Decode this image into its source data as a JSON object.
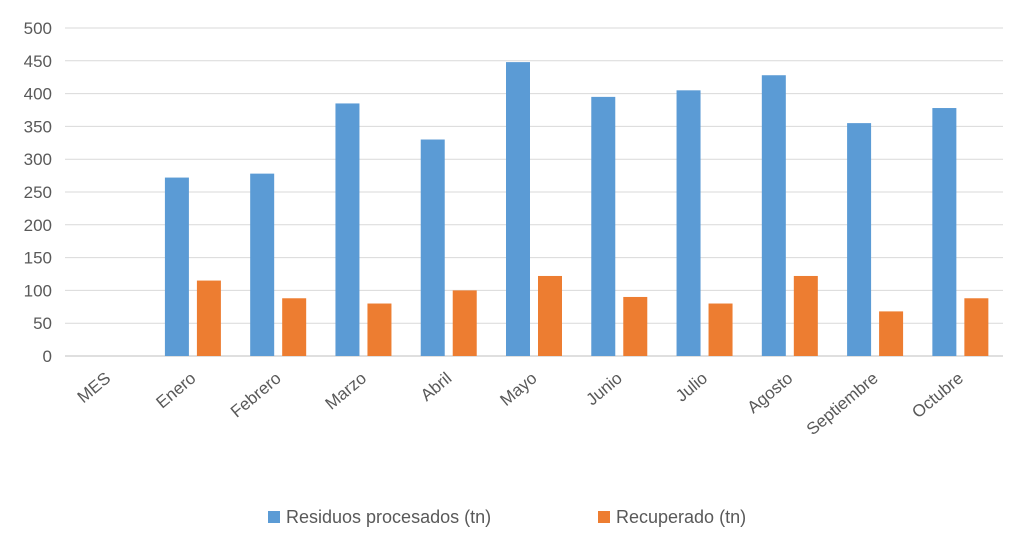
{
  "chart_data": {
    "type": "bar",
    "categories": [
      "MES",
      "Enero",
      "Febrero",
      "Marzo",
      "Abril",
      "Mayo",
      "Junio",
      "Julio",
      "Agosto",
      "Septiembre",
      "Octubre"
    ],
    "series": [
      {
        "name": "Residuos procesados (tn)",
        "color": "#5b9bd5",
        "values": [
          null,
          272,
          278,
          385,
          330,
          448,
          395,
          405,
          428,
          355,
          378
        ]
      },
      {
        "name": "Recuperado (tn)",
        "color": "#ed7d31",
        "values": [
          null,
          115,
          88,
          80,
          100,
          122,
          90,
          80,
          122,
          68,
          88
        ]
      }
    ],
    "title": "",
    "xlabel": "",
    "ylabel": "",
    "ylim": [
      0,
      500
    ],
    "yticks": [
      0,
      50,
      100,
      150,
      200,
      250,
      300,
      350,
      400,
      450,
      500
    ],
    "grid": true,
    "legend_position": "bottom"
  }
}
